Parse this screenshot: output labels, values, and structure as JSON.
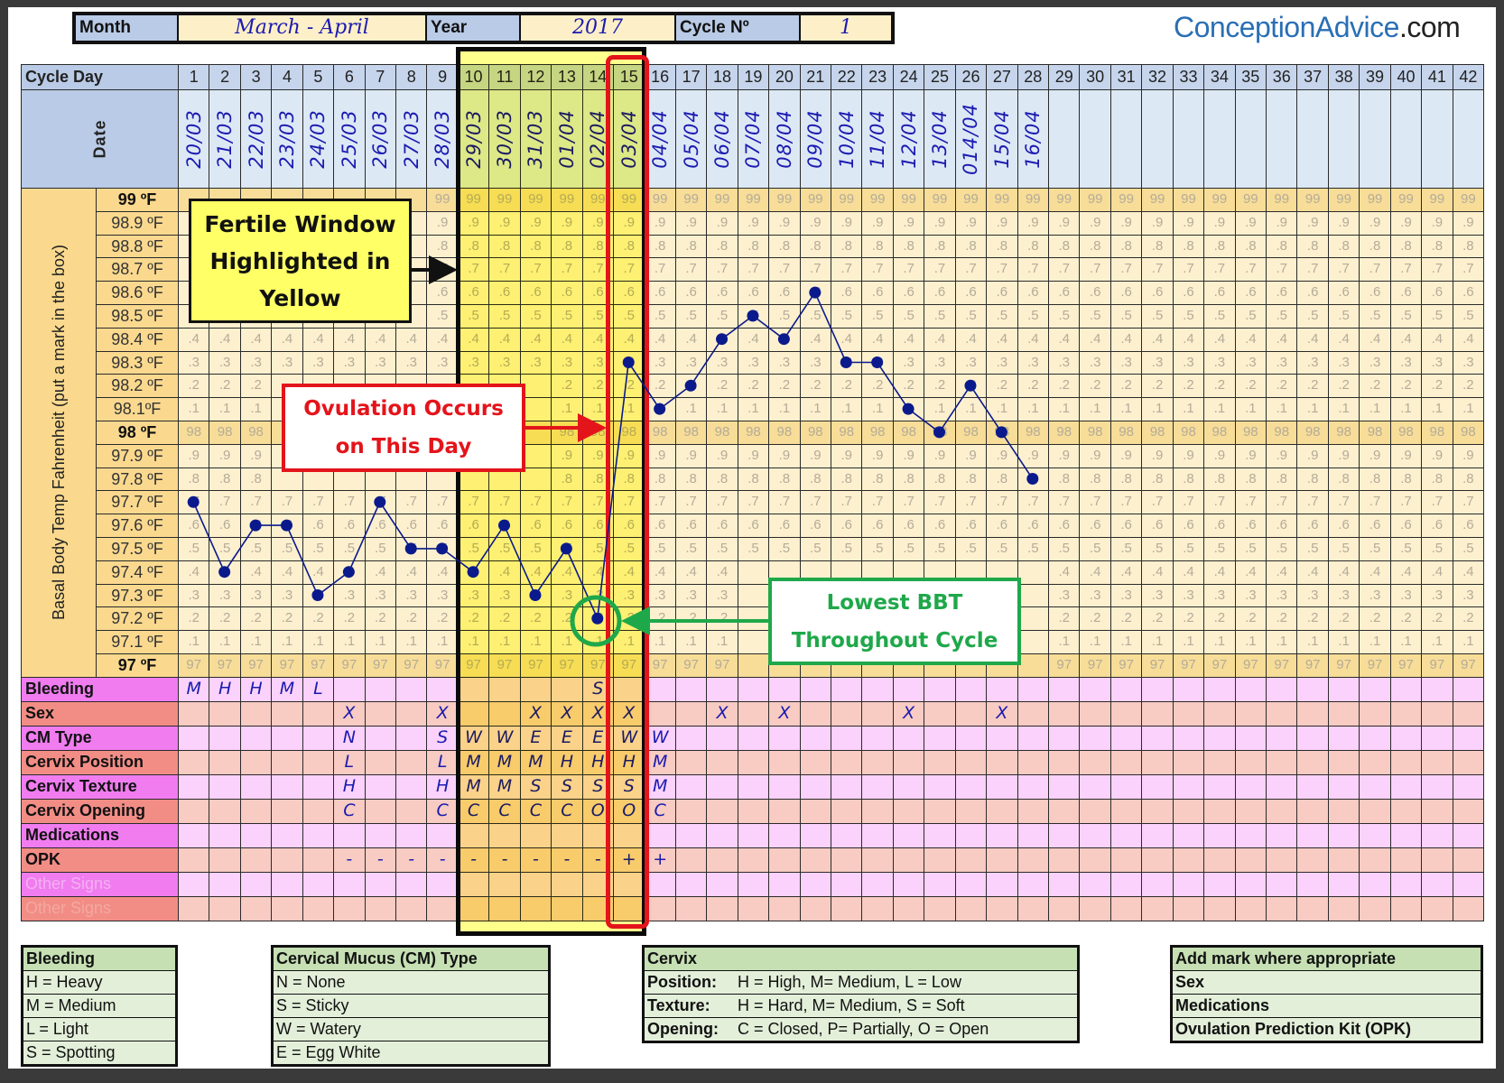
{
  "header": {
    "month_label": "Month",
    "month": "March - April",
    "year_label": "Year",
    "year": "2017",
    "cycle_label": "Cycle Nº",
    "cycle": "1"
  },
  "logo": {
    "main": "ConceptionAdvice",
    "suffix": ".com"
  },
  "table": {
    "cycle_day_label": "Cycle Day",
    "date_label": "Date",
    "y_axis_label": "Basal Body Temp Fahrenheit (put a mark in the box)",
    "days": [
      "1",
      "2",
      "3",
      "4",
      "5",
      "6",
      "7",
      "8",
      "9",
      "10",
      "11",
      "12",
      "13",
      "14",
      "15",
      "16",
      "17",
      "18",
      "19",
      "20",
      "21",
      "22",
      "23",
      "24",
      "25",
      "26",
      "27",
      "28",
      "29",
      "30",
      "31",
      "32",
      "33",
      "34",
      "35",
      "36",
      "37",
      "38",
      "39",
      "40",
      "41",
      "42"
    ],
    "dates": [
      "20/03",
      "21/03",
      "22/03",
      "23/03",
      "24/03",
      "25/03",
      "26/03",
      "27/03",
      "28/03",
      "29/03",
      "30/03",
      "31/03",
      "01/04",
      "02/04",
      "03/04",
      "04/04",
      "05/04",
      "06/04",
      "07/04",
      "08/04",
      "09/04",
      "10/04",
      "11/04",
      "12/04",
      "13/04",
      "014/04",
      "15/04",
      "16/04"
    ],
    "temp_labels": [
      "99 ºF",
      "98.9 ºF",
      "98.8 ºF",
      "98.7 ºF",
      "98.6 ºF",
      "98.5 ºF",
      "98.4 ºF",
      "98.3 ºF",
      "98.2 ºF",
      "98.1ºF",
      "98 ºF",
      "97.9 ºF",
      "97.8 ºF",
      "97.7 ºF",
      "97.6 ºF",
      "97.5 ºF",
      "97.4 ºF",
      "97.3 ºF",
      "97.2 ºF",
      "97.1 ºF",
      "97 ºF"
    ],
    "cell_marks": [
      "99",
      ".9",
      ".8",
      ".7",
      ".6",
      ".5",
      ".4",
      ".3",
      ".2",
      ".1",
      "98",
      ".9",
      ".8",
      ".7",
      ".6",
      ".5",
      ".4",
      ".3",
      ".2",
      ".1",
      "97"
    ],
    "rows": [
      {
        "label": "Bleeding",
        "marks": {
          "1": "M",
          "2": "H",
          "3": "H",
          "4": "M",
          "5": "L",
          "14": "S"
        }
      },
      {
        "label": "Sex",
        "marks": {
          "6": "X",
          "9": "X",
          "12": "X",
          "13": "X",
          "14": "X",
          "15": "X",
          "18": "X",
          "20": "X",
          "24": "X",
          "27": "X"
        }
      },
      {
        "label": "CM Type",
        "marks": {
          "6": "N",
          "9": "S",
          "10": "W",
          "11": "W",
          "12": "E",
          "13": "E",
          "14": "E",
          "15": "W",
          "16": "W"
        }
      },
      {
        "label": "Cervix Position",
        "marks": {
          "6": "L",
          "9": "L",
          "10": "M",
          "11": "M",
          "12": "M",
          "13": "H",
          "14": "H",
          "15": "H",
          "16": "M"
        }
      },
      {
        "label": "Cervix Texture",
        "marks": {
          "6": "H",
          "9": "H",
          "10": "M",
          "11": "M",
          "12": "S",
          "13": "S",
          "14": "S",
          "15": "S",
          "16": "M"
        }
      },
      {
        "label": "Cervix Opening",
        "marks": {
          "6": "C",
          "9": "C",
          "10": "C",
          "11": "C",
          "12": "C",
          "13": "C",
          "14": "O",
          "15": "O",
          "16": "C"
        }
      },
      {
        "label": "Medications",
        "marks": {}
      },
      {
        "label": "OPK",
        "marks": {
          "6": "-",
          "7": "-",
          "8": "-",
          "9": "-",
          "10": "-",
          "11": "-",
          "12": "-",
          "13": "-",
          "14": "-",
          "15": "+",
          "16": "+"
        }
      },
      {
        "label": "Other Signs",
        "marks": {}
      },
      {
        "label": "Other Signs",
        "marks": {}
      }
    ]
  },
  "chart_data": {
    "type": "line",
    "x": [
      1,
      2,
      3,
      4,
      5,
      6,
      7,
      8,
      9,
      10,
      11,
      12,
      13,
      14,
      15,
      16,
      17,
      18,
      19,
      20,
      21,
      22,
      23,
      24,
      25,
      26,
      27,
      28
    ],
    "y": [
      97.7,
      97.4,
      97.6,
      97.6,
      97.3,
      97.4,
      97.7,
      97.5,
      97.5,
      97.4,
      97.6,
      97.3,
      97.5,
      97.2,
      98.3,
      98.1,
      98.2,
      98.4,
      98.5,
      98.4,
      98.6,
      98.3,
      98.3,
      98.1,
      98.0,
      98.2,
      98.0,
      97.8
    ],
    "xlabel": "Cycle Day",
    "ylabel": "Basal Body Temp Fahrenheit (put a mark in the box)",
    "ylim": [
      97,
      99
    ],
    "xlim": [
      1,
      42
    ],
    "grid": true,
    "series_color": "#0a1a8c",
    "fertile_window_days": [
      10,
      15
    ],
    "ovulation_day": 15,
    "lowest_bbt_day": 14
  },
  "annotations": {
    "fertile": [
      "Fertile Window",
      "Highlighted in",
      "Yellow"
    ],
    "ovulation": [
      "Ovulation Occurs",
      "on This Day"
    ],
    "lowest": [
      "Lowest BBT",
      "Throughout Cycle"
    ],
    "colors": {
      "fertile": "#ffff66",
      "ovulation": "#e4141b",
      "lowest": "#1fa84a"
    }
  },
  "legend": {
    "bleeding": {
      "title": "Bleeding",
      "items": [
        "H = Heavy",
        "M = Medium",
        "L = Light",
        "S = Spotting"
      ]
    },
    "cm": {
      "title": "Cervical Mucus (CM) Type",
      "items": [
        "N = None",
        "S = Sticky",
        "W = Watery",
        "E = Egg White"
      ]
    },
    "cervix": {
      "title": "Cervix",
      "items": [
        {
          "key": "Position:",
          "text": "H = High, M= Medium, L = Low"
        },
        {
          "key": "Texture:",
          "text": "H = Hard, M= Medium, S = Soft"
        },
        {
          "key": "Opening:",
          "text": "C = Closed, P= Partially, O = Open"
        }
      ]
    },
    "marks": {
      "title": "Add mark where appropriate",
      "items": [
        "Sex",
        "Medications",
        "Ovulation Prediction Kit (OPK)"
      ]
    }
  }
}
